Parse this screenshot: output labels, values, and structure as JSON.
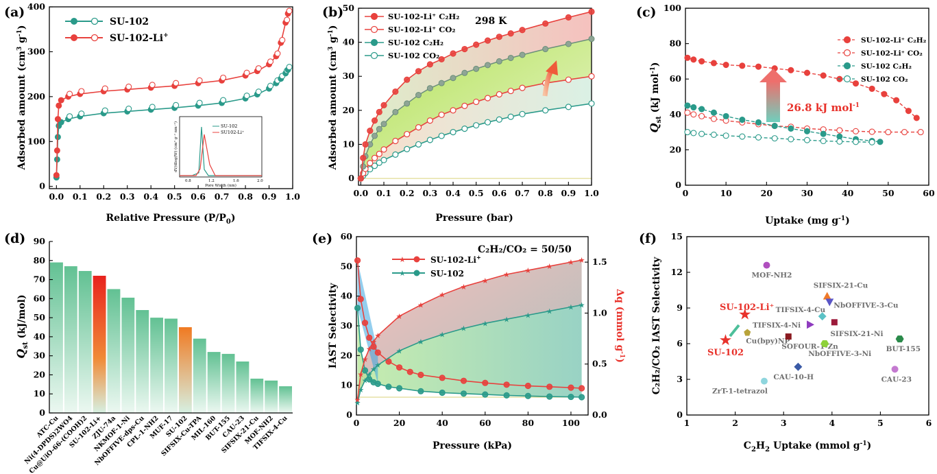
{
  "chart_data": [
    {
      "panel": "(a)",
      "type": "line",
      "xlabel": "Relative Pressure (P/P0)",
      "ylabel": "Adsorbed amount (cm3 g-1)",
      "xlim": [
        -0.03,
        1.0
      ],
      "ylim": [
        -5,
        400
      ],
      "xticks": [
        "0.0",
        "0.1",
        "0.2",
        "0.3",
        "0.4",
        "0.5",
        "0.6",
        "0.7",
        "0.8",
        "0.9",
        "1.0"
      ],
      "yticks": [
        "0",
        "100",
        "200",
        "300",
        "400"
      ],
      "legend": [
        "SU-102",
        "SU-102-Li+"
      ],
      "series": [
        {
          "name": "SU-102",
          "color": "#2a9a8a",
          "x": [
            0.0,
            0.003,
            0.006,
            0.01,
            0.02,
            0.05,
            0.1,
            0.2,
            0.3,
            0.4,
            0.5,
            0.6,
            0.7,
            0.8,
            0.85,
            0.9,
            0.93,
            0.95,
            0.97,
            0.98
          ],
          "y": [
            20,
            60,
            110,
            135,
            143,
            150,
            156,
            163,
            167,
            171,
            175,
            180,
            186,
            196,
            205,
            218,
            230,
            240,
            252,
            260
          ]
        },
        {
          "name": "SU-102-Li+",
          "color": "#e8413d",
          "x": [
            0.0,
            0.003,
            0.006,
            0.01,
            0.02,
            0.05,
            0.1,
            0.2,
            0.3,
            0.4,
            0.5,
            0.6,
            0.7,
            0.8,
            0.85,
            0.9,
            0.93,
            0.95,
            0.97,
            0.98
          ],
          "y": [
            25,
            80,
            150,
            180,
            192,
            200,
            206,
            212,
            216,
            220,
            224,
            230,
            236,
            247,
            257,
            272,
            290,
            320,
            365,
            385
          ]
        }
      ],
      "inset": {
        "xlabel": "Pore Width (nm)",
        "ylabel": "dV/dlog(W) (cm3 g-1 nm-1)",
        "xticks": [
          "0.8",
          "1.2",
          "1.6",
          "2.0"
        ],
        "legend": [
          "SU-102",
          "SU-102-Li+"
        ]
      }
    },
    {
      "panel": "(b)",
      "type": "line",
      "annotation": "298 K",
      "xlabel": "Pressure (bar)",
      "ylabel": "Adsorbed amount (cm3 g-1)",
      "xlim": [
        -0.01,
        1.0
      ],
      "ylim": [
        -2,
        50
      ],
      "xticks": [
        "0.0",
        "0.1",
        "0.2",
        "0.3",
        "0.4",
        "0.5",
        "0.6",
        "0.7",
        "0.8",
        "0.9",
        "1.0"
      ],
      "yticks": [
        "0",
        "10",
        "20",
        "30",
        "40",
        "50"
      ],
      "x": [
        0.0,
        0.01,
        0.02,
        0.04,
        0.06,
        0.08,
        0.1,
        0.15,
        0.2,
        0.25,
        0.3,
        0.35,
        0.4,
        0.45,
        0.5,
        0.55,
        0.6,
        0.65,
        0.7,
        0.8,
        0.9,
        1.0
      ],
      "series": [
        {
          "name": "SU-102-Li+ C2H2",
          "color": "#e8413d",
          "filled": true,
          "y": [
            0,
            6,
            10,
            14,
            17,
            19.5,
            21.5,
            25.5,
            29,
            31.5,
            33.5,
            35,
            36.7,
            38,
            39.3,
            40.5,
            41.6,
            42.6,
            43.6,
            45.5,
            47.3,
            49
          ]
        },
        {
          "name": "SU-102-Li+ CO2",
          "color": "#e8413d",
          "filled": false,
          "y": [
            0,
            1.5,
            2.8,
            4.5,
            6,
            7.2,
            8.5,
            11,
            13,
            15,
            17,
            18.7,
            20,
            21.3,
            22.5,
            23.6,
            24.7,
            25.7,
            26.6,
            28,
            29,
            30
          ]
        },
        {
          "name": "SU-102 C2H2",
          "color": "#2a9a8a",
          "filled": true,
          "y": [
            0,
            3.5,
            6.5,
            10,
            12.5,
            14.5,
            16,
            19.5,
            22,
            24.5,
            26.5,
            28,
            29.5,
            31,
            32.2,
            33.3,
            34.4,
            35.4,
            36.3,
            38,
            39.5,
            41
          ]
        },
        {
          "name": "SU-102 CO2",
          "color": "#2a9a8a",
          "filled": false,
          "y": [
            0,
            0.8,
            1.6,
            2.7,
            3.7,
            4.6,
            5.4,
            7,
            8.6,
            10,
            11.3,
            12.5,
            13.6,
            14.6,
            15.6,
            16.5,
            17.3,
            18.1,
            18.9,
            20,
            21,
            22
          ]
        }
      ]
    },
    {
      "panel": "(c)",
      "type": "line",
      "annotation": "26.8 kJ mol-1",
      "xlabel": "Uptake (mg g-1)",
      "ylabel": "Qst (kJ mol-1)",
      "xlim": [
        0,
        60
      ],
      "ylim": [
        0,
        100
      ],
      "xticks": [
        "0",
        "10",
        "20",
        "30",
        "40",
        "50",
        "60"
      ],
      "yticks": [
        "0",
        "20",
        "40",
        "60",
        "80",
        "100"
      ],
      "series": [
        {
          "name": "SU-102-Li+ C2H2",
          "color": "#e8413d",
          "filled": true,
          "x": [
            0.5,
            2,
            4,
            7,
            10,
            14,
            18,
            22,
            26,
            30,
            34,
            38,
            42,
            46,
            49,
            52,
            55,
            57
          ],
          "y": [
            72,
            71,
            70,
            69,
            68,
            67.5,
            67,
            66,
            65,
            63.5,
            62,
            60,
            57.5,
            54.5,
            51.5,
            48,
            42,
            38
          ]
        },
        {
          "name": "SU-102-Li+ CO2",
          "color": "#e8413d",
          "filled": false,
          "x": [
            0.5,
            2,
            4,
            7,
            10,
            14,
            18,
            22,
            26,
            30,
            34,
            38,
            42,
            46,
            50,
            54,
            58
          ],
          "y": [
            41,
            40,
            39,
            37.5,
            36.5,
            35.5,
            34.5,
            33.5,
            33,
            32,
            31.5,
            31,
            30.5,
            30.2,
            30,
            30,
            30
          ]
        },
        {
          "name": "SU-102 C2H2",
          "color": "#2a9a8a",
          "filled": true,
          "x": [
            0.5,
            2,
            4,
            7,
            10,
            14,
            18,
            22,
            26,
            30,
            34,
            38,
            42,
            46,
            48
          ],
          "y": [
            45,
            44,
            43,
            41,
            39,
            37,
            35.5,
            33.5,
            32,
            30.5,
            29,
            27.5,
            26,
            25,
            24.5
          ]
        },
        {
          "name": "SU-102 CO2",
          "color": "#2a9a8a",
          "filled": false,
          "x": [
            0.5,
            2,
            4,
            7,
            10,
            14,
            18,
            22,
            26,
            30,
            34,
            38,
            42,
            46
          ],
          "y": [
            30,
            29.5,
            29,
            28.5,
            28,
            27.5,
            27,
            26.5,
            26,
            25.5,
            25,
            24.7,
            24.5,
            24.3
          ]
        }
      ]
    },
    {
      "panel": "(d)",
      "type": "bar",
      "ylabel": "Qst (kJ/mol)",
      "ylim": [
        0,
        90
      ],
      "yticks": [
        "0",
        "10",
        "20",
        "30",
        "40",
        "50",
        "60",
        "70",
        "80",
        "90"
      ],
      "categories": [
        "ATC-Cu",
        "Ni(4-DPDS)2WO4",
        "Cu@UiO-66-(COOH)2",
        "SU-102-Li+",
        "ZJU-74a",
        "NKMOF-1-Ni",
        "NbOFFIVE-dps-Cu",
        "CPL-1-NH2",
        "MUF-17",
        "SU-102",
        "SIFSIX-Cu-TPA",
        "MIL-160",
        "BUT-155",
        "CAU-23",
        "SIFSIX-21-Cu",
        "MOF-NH2",
        "TIFSIX-4-Cu"
      ],
      "values": [
        79,
        77,
        74.5,
        72,
        65,
        60.5,
        54,
        50,
        49.5,
        45,
        39,
        32,
        31,
        27,
        18,
        17,
        14
      ],
      "colors": {
        "default": "#6cc79a",
        "SU-102-Li+": "#e8322b",
        "SU-102": "#f0862a"
      }
    },
    {
      "panel": "(e)",
      "type": "line",
      "annotation": "C2H2/CO2 = 50/50",
      "xlabel": "Pressure (kPa)",
      "ylabel": "IAST Selectivity",
      "y2label": "Δq (mmol g-1)",
      "xlim": [
        0,
        108
      ],
      "ylim": [
        0,
        60
      ],
      "y2lim": [
        0,
        1.75
      ],
      "xticks": [
        "0",
        "20",
        "40",
        "60",
        "80",
        "100"
      ],
      "yticks": [
        "0",
        "10",
        "20",
        "30",
        "40",
        "50",
        "60"
      ],
      "y2ticks": [
        "0.0",
        "0.5",
        "1.0",
        "1.5"
      ],
      "series": [
        {
          "name": "SU-102-Li+",
          "color": "#e8413d",
          "axis": "left",
          "x": [
            0.5,
            2,
            4,
            6,
            8,
            10,
            15,
            20,
            25,
            30,
            40,
            50,
            60,
            70,
            80,
            90,
            100,
            105
          ],
          "y": [
            52,
            39,
            31,
            26,
            23,
            21,
            18,
            16,
            14.5,
            13.5,
            12.5,
            11.5,
            10.8,
            10.2,
            9.8,
            9.5,
            9.2,
            9
          ]
        },
        {
          "name": "SU-102",
          "color": "#2a9a8a",
          "axis": "left",
          "x": [
            0.5,
            2,
            4,
            6,
            8,
            10,
            15,
            20,
            30,
            40,
            50,
            60,
            70,
            80,
            90,
            100,
            105
          ],
          "y": [
            36,
            22,
            15,
            12,
            11,
            10.5,
            9.5,
            9,
            8,
            7.5,
            7.2,
            6.9,
            6.6,
            6.4,
            6.2,
            6.1,
            6
          ]
        },
        {
          "name": "SU-102-Li+ Δq",
          "color": "#e8413d",
          "axis": "right",
          "x": [
            0.5,
            2,
            4,
            6,
            8,
            10,
            20,
            30,
            40,
            50,
            60,
            70,
            80,
            90,
            100,
            105
          ],
          "y": [
            0.15,
            0.4,
            0.55,
            0.65,
            0.72,
            0.78,
            0.97,
            1.08,
            1.18,
            1.26,
            1.32,
            1.38,
            1.42,
            1.46,
            1.5,
            1.52
          ]
        },
        {
          "name": "SU-102 Δq",
          "color": "#2a9a8a",
          "axis": "right",
          "x": [
            0.5,
            2,
            4,
            6,
            8,
            10,
            20,
            30,
            40,
            50,
            60,
            70,
            80,
            90,
            100,
            105
          ],
          "y": [
            0.12,
            0.25,
            0.34,
            0.4,
            0.45,
            0.49,
            0.63,
            0.72,
            0.79,
            0.85,
            0.9,
            0.94,
            0.98,
            1.02,
            1.06,
            1.08
          ]
        }
      ]
    },
    {
      "panel": "(f)",
      "type": "scatter",
      "xlabel": "C2H2 Uptake (mmol g-1)",
      "ylabel": "C2H2/CO2 IAST Selectivity",
      "xlim": [
        1,
        6
      ],
      "ylim": [
        0,
        15
      ],
      "xticks": [
        "1",
        "2",
        "3",
        "4",
        "5",
        "6"
      ],
      "yticks": [
        "0",
        "3",
        "6",
        "9",
        "12",
        "15"
      ],
      "points": [
        {
          "label": "MOF-NH2",
          "x": 2.65,
          "y": 12.6,
          "color": "#b04fbf",
          "shape": "circle"
        },
        {
          "label": "SIFSIX-21-Cu",
          "x": 3.9,
          "y": 10.0,
          "color": "#f07a2a",
          "shape": "triangle"
        },
        {
          "label": "NbOFFIVE-3-Cu",
          "x": 3.95,
          "y": 9.5,
          "color": "#5a56c6",
          "shape": "tri-down"
        },
        {
          "label": "TIFSIX-4-Cu",
          "x": 3.8,
          "y": 8.3,
          "color": "#5cc2c6",
          "shape": "diamond"
        },
        {
          "label": "SU-102-Li+",
          "x": 2.2,
          "y": 8.5,
          "color": "#e8322b",
          "shape": "star"
        },
        {
          "label": "TIFSIX-4-Ni",
          "x": 3.55,
          "y": 7.6,
          "color": "#8f3bbf",
          "shape": "tri-right"
        },
        {
          "label": "SIFSIX-21-Ni",
          "x": 4.05,
          "y": 7.8,
          "color": "#9c1a3a",
          "shape": "square"
        },
        {
          "label": "Cu(bpy)NP",
          "x": 2.25,
          "y": 6.95,
          "color": "#b8a33a",
          "shape": "pentagon"
        },
        {
          "label": "SOFOUR-1-Zn",
          "x": 3.1,
          "y": 6.6,
          "color": "#8a1a20",
          "shape": "square"
        },
        {
          "label": "SU-102",
          "x": 1.8,
          "y": 6.35,
          "color": "#e8322b",
          "shape": "star"
        },
        {
          "label": "BUT-155",
          "x": 5.4,
          "y": 6.4,
          "color": "#2a8a4a",
          "shape": "hexagon"
        },
        {
          "label": "NbOFFIVE-3-Ni",
          "x": 3.85,
          "y": 6.0,
          "color": "#8ed13a",
          "shape": "hexagon"
        },
        {
          "label": "CAU-10-H",
          "x": 3.3,
          "y": 4.05,
          "color": "#3a5aa6",
          "shape": "diamond"
        },
        {
          "label": "CAU-23",
          "x": 5.3,
          "y": 3.85,
          "color": "#c47ad0",
          "shape": "circle"
        },
        {
          "label": "ZrT-1-tetrazol",
          "x": 2.6,
          "y": 2.85,
          "color": "#8fd6de",
          "shape": "circle"
        }
      ]
    }
  ],
  "labels": {
    "a": {
      "panel": "(a)",
      "xlabel": "Relative Pressure (P/P",
      "xlabel_sub": "0",
      "xlabel_end": ")",
      "ylabel": "Adsorbed amount (cm",
      "ylabel_sup": "3",
      "ylabel_mid": " g",
      "ylabel_sup2": "-1",
      "ylabel_end": ")",
      "leg1": "SU-102",
      "leg2": "SU-102-Li",
      "leg2_sup": "+",
      "inset_x": "Pore Width (nm)",
      "inset_y": "dV/dlog(W) (cm³ g⁻¹ nm⁻¹)",
      "inset_leg1": "SU-102",
      "inset_leg2": "SU102-Li⁺"
    },
    "b": {
      "panel": "(b)",
      "note": "298 K",
      "xlabel": "Pressure (bar)",
      "ylabel": "Adsorbed amount (cm",
      "ylabel_sup": "3",
      "ylabel_mid": " g",
      "ylabel_sup2": "-1",
      "ylabel_end": ")",
      "leg": [
        "SU-102-Li⁺ C₂H₂",
        "SU-102-Li⁺ CO₂",
        "SU-102 C₂H₂",
        "SU-102 CO₂"
      ]
    },
    "c": {
      "panel": "(c)",
      "note": "26.8 kJ mol",
      "note_sup": "-1",
      "xlabel": "Uptake (mg g",
      "xlabel_sup": "-1",
      "xlabel_end": ")",
      "ylabel_q": "Q",
      "ylabel_sub": "st",
      "ylabel": " (kJ mol",
      "ylabel_sup": "-1",
      "ylabel_end": ")",
      "leg": [
        "SU-102-Li⁺ C₂H₂",
        "SU-102-Li⁺ CO₂",
        "SU-102 C₂H₂",
        "SU-102 CO₂"
      ]
    },
    "d": {
      "panel": "(d)",
      "ylabel_q": "Q",
      "ylabel_sub": "st",
      "ylabel": " (kJ/mol)"
    },
    "e": {
      "panel": "(e)",
      "note": "C₂H₂/CO₂ = 50/50",
      "xlabel": "Pressure (kPa)",
      "ylabel": "IAST Selectivity",
      "y2label": "Δq (mmol g",
      "y2label_sup": "-1",
      "y2label_end": ")",
      "leg1": "SU-102-Li",
      "leg1_sup": "+",
      "leg2": "SU-102"
    },
    "f": {
      "panel": "(f)",
      "xlabel": "C",
      "xlabel_sub": "2",
      "xlabel_mid": "H",
      "xlabel_sub2": "2",
      "xlabel_end": " Uptake (mmol g",
      "xlabel_sup": "-1",
      "xlabel_end2": ")",
      "ylabel": "C₂H₂/CO₂ IAST Selectivity",
      "highlight1": "SU-102-Li⁺",
      "highlight2": "SU-102"
    }
  }
}
